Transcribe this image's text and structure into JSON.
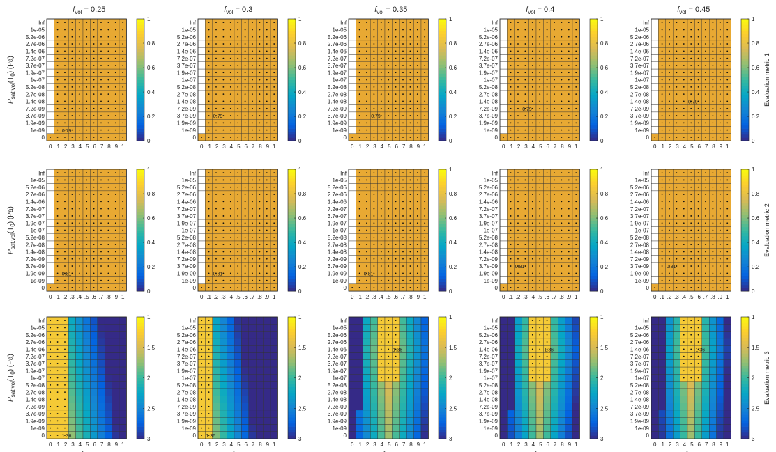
{
  "figure": {
    "column_title_prefix": "f",
    "column_title_sub": "vol",
    "column_values": [
      "0.25",
      "0.3",
      "0.35",
      "0.4",
      "0.45"
    ],
    "ylabel_main": "P",
    "ylabel_sub": "sat,vol",
    "ylabel_rest": "(T",
    "ylabel_sub2": "0",
    "ylabel_unit": ") (Pa)",
    "xlabel_main": "f",
    "xlabel_sub": "non",
    "colormap": [
      "#352a87",
      "#0363e1",
      "#1485d4",
      "#06a7c6",
      "#38b99e",
      "#92bf73",
      "#d9ba56",
      "#fcce2e",
      "#f9fb0e"
    ],
    "selected_color": "#e8a933",
    "grid_color": "#333333"
  },
  "chart_data": [
    {
      "type": "heatmap",
      "metric": "Evaluation metric 1",
      "x_ticks": [
        "0",
        ".1",
        ".2",
        ".3",
        ".4",
        ".5",
        ".6",
        ".7",
        ".8",
        ".9",
        "1"
      ],
      "y_ticks": [
        "Inf",
        "1e-05",
        "5.2e-06",
        "2.7e-06",
        "1.4e-06",
        "7.2e-07",
        "3.7e-07",
        "1.9e-07",
        "1e-07",
        "5.2e-08",
        "2.7e-08",
        "1.4e-08",
        "7.2e-09",
        "3.7e-09",
        "1.9e-09",
        "1e-09",
        "0"
      ],
      "colorbar_ticks": [
        "0",
        "0.2",
        "0.4",
        "0.6",
        "0.8",
        "1"
      ],
      "colorbar_range": [
        0,
        1
      ],
      "colorbar_reversed": false,
      "best": [
        {
          "f_vol": "0.25",
          "label": "0.79",
          "x": ".1",
          "y": "1e-09"
        },
        {
          "f_vol": "0.3",
          "label": "0.79",
          "x": ".1",
          "y": "3.7e-09"
        },
        {
          "f_vol": "0.35",
          "label": "0.79",
          "x": ".2",
          "y": "3.7e-09"
        },
        {
          "f_vol": "0.4",
          "label": "0.79",
          "x": ".2",
          "y": "7.2e-09"
        },
        {
          "f_vol": "0.45",
          "label": "0.79",
          "x": ".4",
          "y": "1.4e-08"
        }
      ]
    },
    {
      "type": "heatmap",
      "metric": "Evaluation metric 2",
      "x_ticks": [
        "0",
        ".1",
        ".2",
        ".3",
        ".4",
        ".5",
        ".6",
        ".7",
        ".8",
        ".9",
        "1"
      ],
      "y_ticks": [
        "Inf",
        "1e-05",
        "5.2e-06",
        "2.7e-06",
        "1.4e-06",
        "7.2e-07",
        "3.7e-07",
        "1.9e-07",
        "1e-07",
        "5.2e-08",
        "2.7e-08",
        "1.4e-08",
        "7.2e-09",
        "3.7e-09",
        "1.9e-09",
        "1e-09",
        "0"
      ],
      "colorbar_ticks": [
        "0",
        "0.2",
        "0.4",
        "0.6",
        "0.8",
        "1"
      ],
      "colorbar_range": [
        0,
        1
      ],
      "colorbar_reversed": false,
      "best": [
        {
          "f_vol": "0.25",
          "label": "0.81",
          "x": ".1",
          "y": "1.9e-09"
        },
        {
          "f_vol": "0.3",
          "label": "0.81",
          "x": ".1",
          "y": "1.9e-09"
        },
        {
          "f_vol": "0.35",
          "label": "0.81",
          "x": ".1",
          "y": "1.9e-09"
        },
        {
          "f_vol": "0.4",
          "label": "0.81",
          "x": ".1",
          "y": "3.7e-09"
        },
        {
          "f_vol": "0.45",
          "label": "0.81",
          "x": ".1",
          "y": "3.7e-09"
        }
      ]
    },
    {
      "type": "heatmap",
      "metric": "Evaluation metric 3",
      "x_ticks": [
        "0",
        ".1",
        ".2",
        ".3",
        ".4",
        ".5",
        ".6",
        ".7",
        ".8",
        ".9",
        "1"
      ],
      "y_ticks": [
        "Inf",
        "1e-05",
        "5.2e-06",
        "2.7e-06",
        "1.4e-06",
        "7.2e-07",
        "3.7e-07",
        "1.9e-07",
        "1e-07",
        "5.2e-08",
        "2.7e-08",
        "1.4e-08",
        "7.2e-09",
        "3.7e-09",
        "1.9e-09",
        "1e-09",
        "0"
      ],
      "colorbar_ticks": [
        "1",
        "1.5",
        "2",
        "2.5",
        "3"
      ],
      "colorbar_range": [
        1,
        3
      ],
      "colorbar_reversed": true,
      "best": [
        {
          "f_vol": "0.25",
          "label": "1.36",
          "x": ".1",
          "y": "0"
        },
        {
          "f_vol": "0.3",
          "label": "1.36",
          "x": "0",
          "y": "0"
        },
        {
          "f_vol": "0.35",
          "label": "1.36",
          "x": ".5",
          "y": "1.4e-06"
        },
        {
          "f_vol": "0.4",
          "label": "1.36",
          "x": ".5",
          "y": "1.4e-06"
        },
        {
          "f_vol": "0.45",
          "label": "1.36",
          "x": ".5",
          "y": "1.4e-06"
        }
      ]
    }
  ]
}
